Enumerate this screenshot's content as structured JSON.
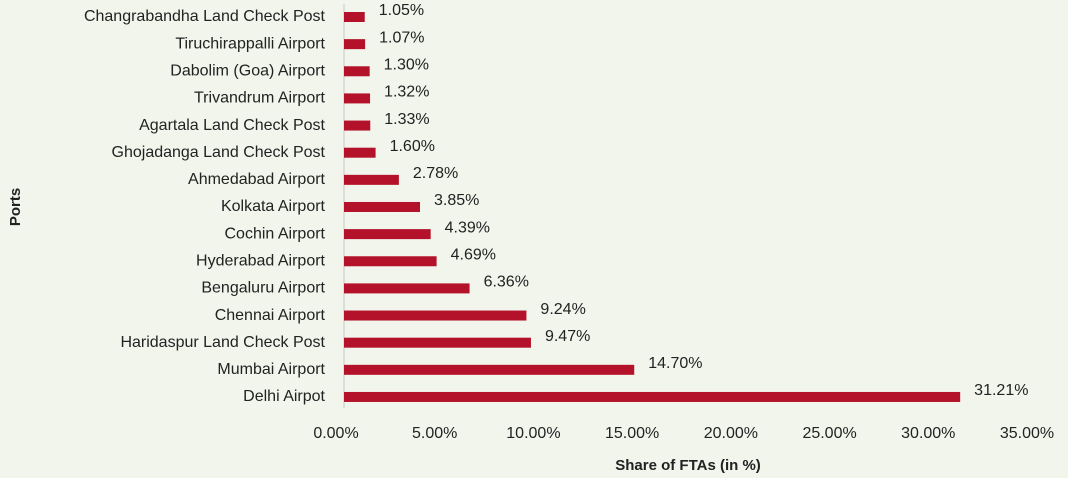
{
  "chart_data": {
    "type": "barh",
    "xlabel": "Share of FTAs (in %)",
    "ylabel": "Ports",
    "categories": [
      "Changrabandha Land Check Post",
      "Tiruchirappalli Airport",
      "Dabolim (Goa) Airport",
      "Trivandrum Airport",
      "Agartala Land Check Post",
      "Ghojadanga Land Check Post",
      "Ahmedabad Airport",
      "Kolkata Airport",
      "Cochin Airport",
      "Hyderabad Airport",
      "Bengaluru Airport",
      "Chennai Airport",
      "Haridaspur Land Check Post",
      "Mumbai Airport",
      "Delhi Airpot"
    ],
    "values": [
      1.05,
      1.07,
      1.3,
      1.32,
      1.33,
      1.6,
      2.78,
      3.85,
      4.39,
      4.69,
      6.36,
      9.24,
      9.47,
      14.7,
      31.21
    ],
    "value_labels": [
      "1.05%",
      "1.07%",
      "1.30%",
      "1.32%",
      "1.33%",
      "1.60%",
      "2.78%",
      "3.85%",
      "4.39%",
      "4.69%",
      "6.36%",
      "9.24%",
      "9.47%",
      "14.70%",
      "31.21%"
    ],
    "color": "#b3122a",
    "xlim": [
      0,
      35
    ],
    "xticks": [
      {
        "value": 0,
        "label": "0.00%"
      },
      {
        "value": 5,
        "label": "5.00%"
      },
      {
        "value": 10,
        "label": "10.00%"
      },
      {
        "value": 15,
        "label": "15.00%"
      },
      {
        "value": 20,
        "label": "20.00%"
      },
      {
        "value": 25,
        "label": "25.00%"
      },
      {
        "value": 30,
        "label": "30.00%"
      },
      {
        "value": 35,
        "label": "35.00%"
      }
    ],
    "grid": false
  }
}
